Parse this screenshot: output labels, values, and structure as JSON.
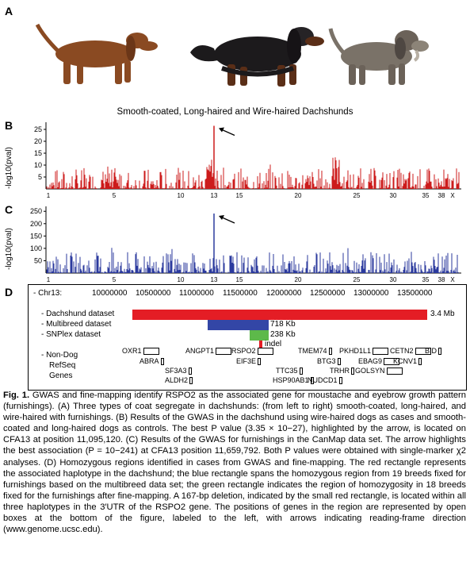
{
  "panels": {
    "a": "A",
    "b": "B",
    "c": "C",
    "d": "D"
  },
  "panelA": {
    "caption": "Smooth-coated, Long-haired and Wire-haired Dachshunds"
  },
  "panelB": {
    "ylabel": "-log10(pval)",
    "yticks": [
      "25",
      "20",
      "15",
      "10",
      "5"
    ],
    "xticks": [
      "1",
      "5",
      "10",
      "13",
      "15",
      "20",
      "25",
      "30",
      "35",
      "38",
      "X"
    ],
    "color": "#cc1b1b",
    "peak_value": 26.5
  },
  "panelC": {
    "ylabel": "-log10(pval)",
    "yticks": [
      "250",
      "200",
      "150",
      "100",
      "50"
    ],
    "xticks": [
      "1",
      "5",
      "10",
      "13",
      "15",
      "20",
      "25",
      "30",
      "35",
      "38",
      "X"
    ],
    "color": "#2b3a9e",
    "peak_value": 241
  },
  "panelD": {
    "chr_label": "- Chr13:",
    "positions": [
      "10000000",
      "10500000",
      "11000000",
      "11500000",
      "12000000",
      "12500000",
      "13000000",
      "13500000"
    ],
    "datasets": [
      {
        "label": "- Dachshund dataset",
        "size": "3.4 Mb",
        "color": "#e41d25"
      },
      {
        "label": "- Multibreed dataset",
        "size": "718 Kb",
        "color": "#3346a6"
      },
      {
        "label": "- SNPlex dataset",
        "size": "238 Kb",
        "color": "#5db94a"
      }
    ],
    "indel_label": "indel",
    "nondog_label": "- Non-Dog",
    "refseq_label": "RefSeq",
    "genes_label": "Genes",
    "genes": [
      "OXR1",
      "ABRA",
      "ANGPT1",
      "RSPO2",
      "EIF3E",
      "TMEM74",
      "PKHD1L1",
      "CETN2",
      "BID",
      "SF3A3",
      "TTC35",
      "BTG3",
      "EBAG9",
      "KCNV1",
      "ALDH2",
      "HSP90AB1",
      "TRHR",
      "GOLSYN",
      "NUDCD1"
    ]
  },
  "caption": {
    "figlabel": "Fig. 1.",
    "text": "GWAS and fine-mapping identify RSPO2 as the associated gene for moustache and eyebrow growth pattern (furnishings). (A) Three types of coat segregate in dachshunds: (from left to right) smooth-coated, long-haired, and wire-haired with furnishings. (B) Results of the GWAS in the dachshund using wire-haired dogs as cases and smooth-coated and long-haired dogs as controls. The best P value (3.35 × 10−27), highlighted by the arrow, is located on CFA13 at position 11,095,120. (C) Results of the GWAS for furnishings in the CanMap data set. The arrow highlights the best association (P = 10−241) at CFA13 position 11,659,792. Both P values were obtained with single-marker χ2 analyses. (D) Homozygous regions identified in cases from GWAS and fine-mapping. The red rectangle represents the associated haplotype in the dachshund; the blue rectangle spans the homozygous region from 19 breeds fixed for furnishings based on the multibreed data set; the green rectangle indicates the region of homozygosity in 18 breeds fixed for the furnishings after fine-mapping. A 167-bp deletion, indicated by the small red rectangle, is located within all three haplotypes in the 3′UTR of the RSPO2 gene. The positions of genes in the region are represented by open boxes at the bottom of the figure, labeled to the left, with arrows indicating reading-frame direction (www.genome.ucsc.edu)."
  }
}
